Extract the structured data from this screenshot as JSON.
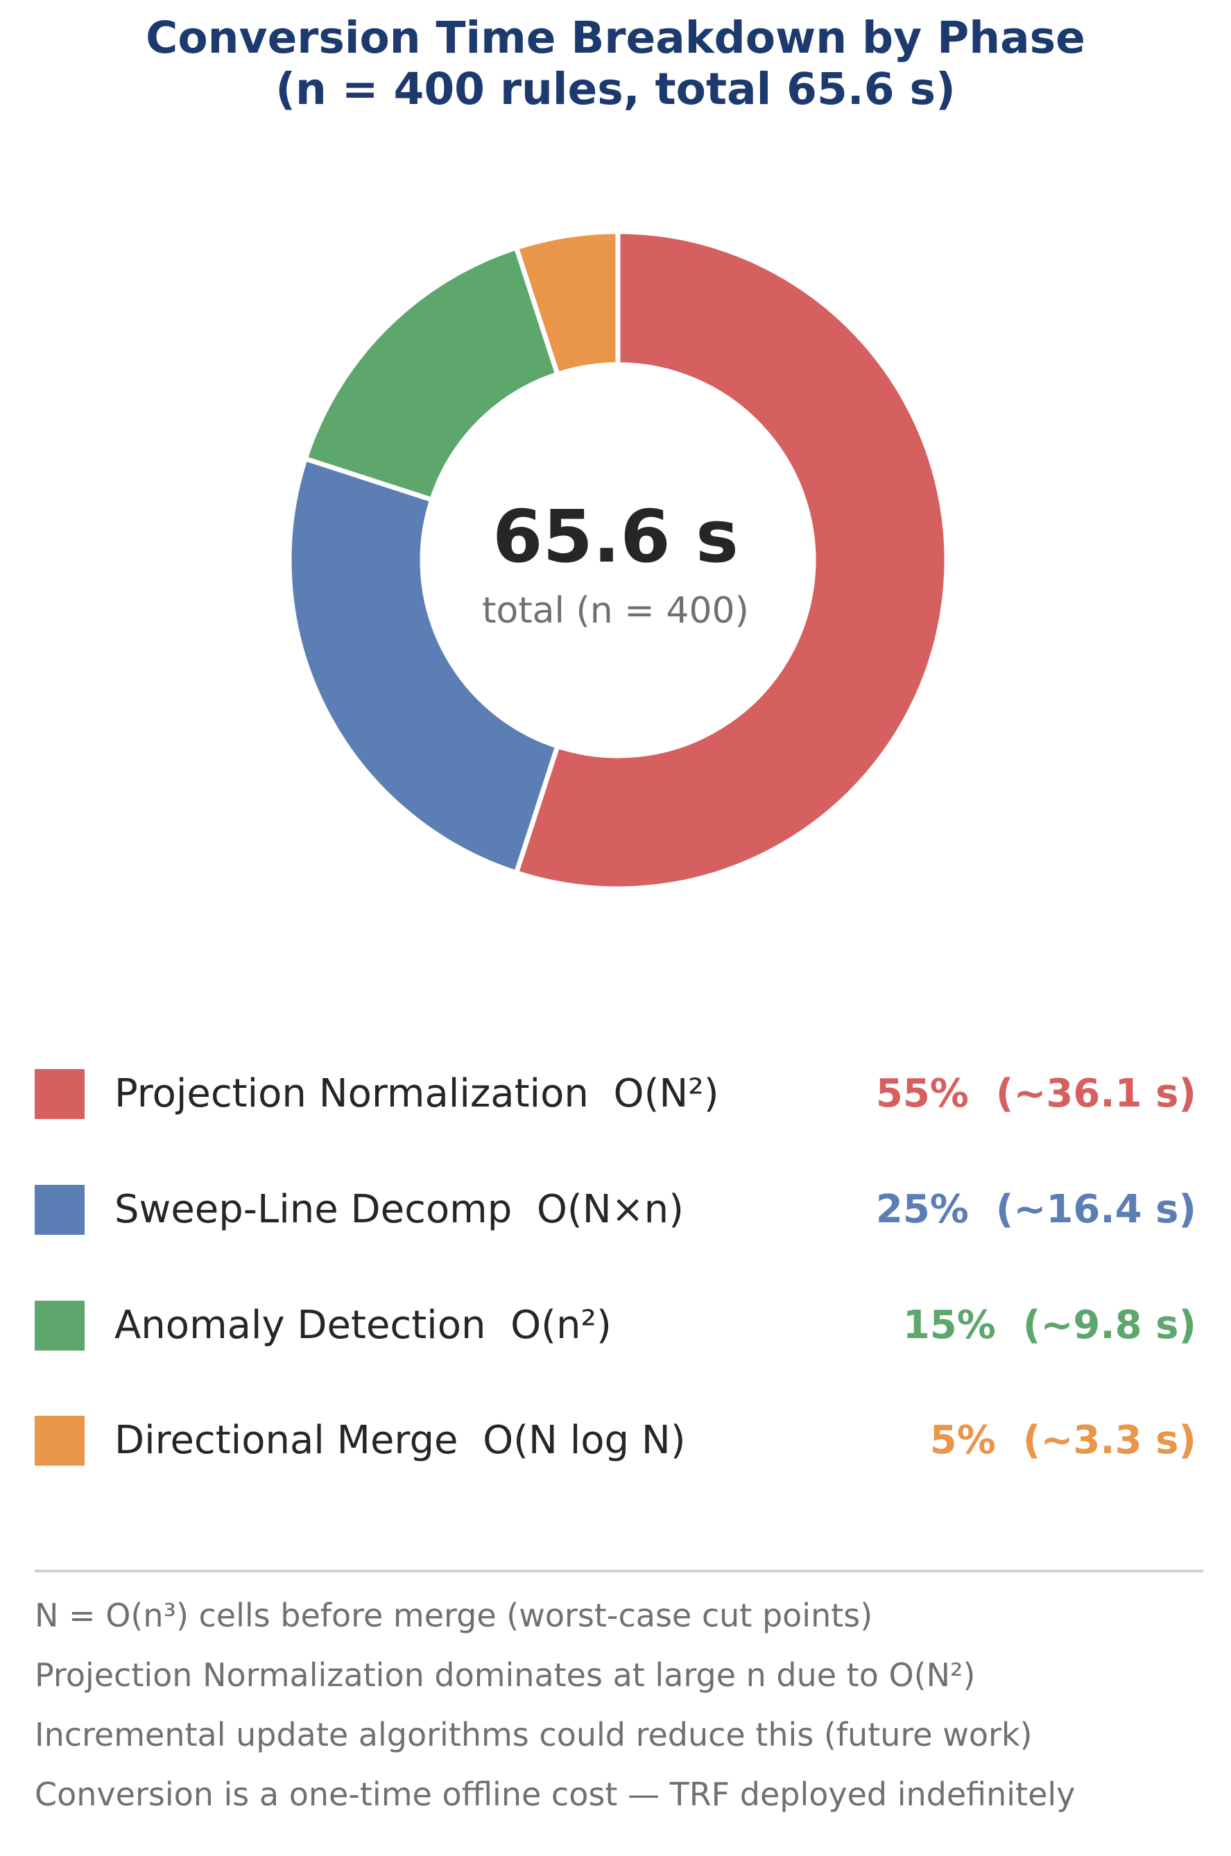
{
  "chart_data": {
    "type": "pie",
    "variant": "donut",
    "title_line1": "Conversion Time Breakdown by Phase",
    "title_line2": "(n = 400 rules, total 65.6 s)",
    "center_value": "65.6 s",
    "center_label": "total (n = 400)",
    "slices": [
      {
        "label": "Projection Normalization",
        "complexity": "O(N²)",
        "percent": 55,
        "value_text": "55%  (~36.1 s)",
        "color": "#d65f5f"
      },
      {
        "label": "Sweep-Line Decomp",
        "complexity": "O(N×n)",
        "percent": 25,
        "value_text": "25%  (~16.4 s)",
        "color": "#5b7eb5"
      },
      {
        "label": "Anomaly Detection",
        "complexity": "O(n²)",
        "percent": 15,
        "value_text": "15%  (~9.8 s)",
        "color": "#5da66c"
      },
      {
        "label": "Directional Merge",
        "complexity": "O(N log N)",
        "percent": 5,
        "value_text": "5%  (~3.3 s)",
        "color": "#e9954a"
      }
    ],
    "legend_placement": "bottom",
    "notes": [
      "N = O(n³) cells before merge (worst-case cut points)",
      "Projection Normalization dominates at large n due to O(N²)",
      "Incremental update algorithms could reduce this (future work)",
      "Conversion is a one-time offline cost — TRF deployed indefinitely"
    ]
  }
}
